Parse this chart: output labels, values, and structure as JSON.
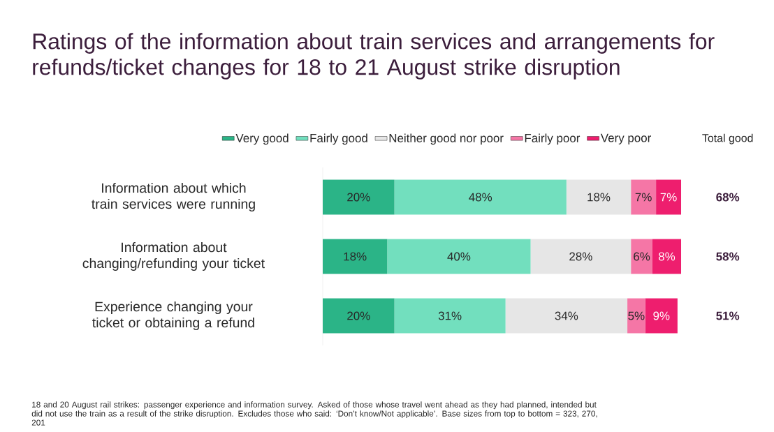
{
  "chart_data": {
    "type": "bar",
    "orientation": "horizontal",
    "stacked": true,
    "legend": "top",
    "title": "Ratings of the information about train services and arrangements for refunds/ticket changes for 18 to 21 August strike disruption",
    "categories": [
      "Information about which train services were running",
      "Information about changing/refunding your ticket",
      "Experience changing your ticket or obtaining a refund"
    ],
    "series": [
      {
        "name": "Very good",
        "color": "#2bb487",
        "values": [
          20,
          18,
          20
        ],
        "value_labels": [
          "20%",
          "18%",
          "20%"
        ]
      },
      {
        "name": "Fairly good",
        "color": "#72dfbe",
        "values": [
          48,
          40,
          31
        ],
        "value_labels": [
          "48%",
          "40%",
          "31%"
        ]
      },
      {
        "name": "Neither good nor poor",
        "color": "#e6e6e6",
        "values": [
          18,
          28,
          34
        ],
        "value_labels": [
          "18%",
          "28%",
          "34%"
        ]
      },
      {
        "name": "Fairly poor",
        "color": "#f576a6",
        "values": [
          7,
          6,
          5
        ],
        "value_labels": [
          "7%",
          "6%",
          "5%"
        ]
      },
      {
        "name": "Very poor",
        "color": "#ee1e6e",
        "values": [
          7,
          8,
          9
        ],
        "value_labels": [
          "7%",
          "8%",
          "9%"
        ]
      }
    ],
    "annotations": [
      "Total good",
      "68%",
      "58%",
      "51%",
      "18 and 20 August rail strikes: passenger experience and information survey. Asked of those whose travel went ahead as they had planned, intended but did not use the train as a result of the strike disruption. Excludes those who said: ‘Don’t know/Not applicable’. Base sizes from top to bottom = 323, 270, 201"
    ]
  }
}
